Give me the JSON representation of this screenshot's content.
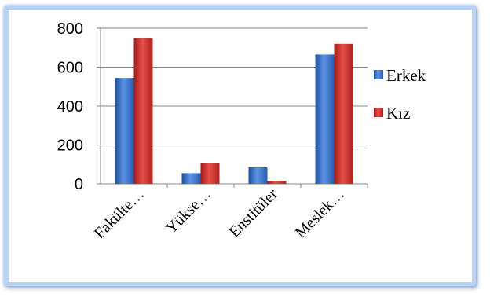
{
  "chart_data": {
    "type": "bar",
    "title": "",
    "xlabel": "",
    "ylabel": "",
    "categories": [
      "Fakülte…",
      "Yükse…",
      "Enstitüler",
      "Meslek…"
    ],
    "series": [
      {
        "name": "Erkek",
        "values": [
          545,
          55,
          85,
          665
        ]
      },
      {
        "name": "Kız",
        "values": [
          750,
          105,
          15,
          720
        ]
      }
    ],
    "ylim": [
      0,
      800
    ],
    "yticks": [
      "0",
      "200",
      "400",
      "600",
      "800"
    ],
    "grid": true,
    "legend_position": "right",
    "colors": {
      "Erkek": "#3c72c7",
      "Kız": "#c8302c"
    }
  }
}
